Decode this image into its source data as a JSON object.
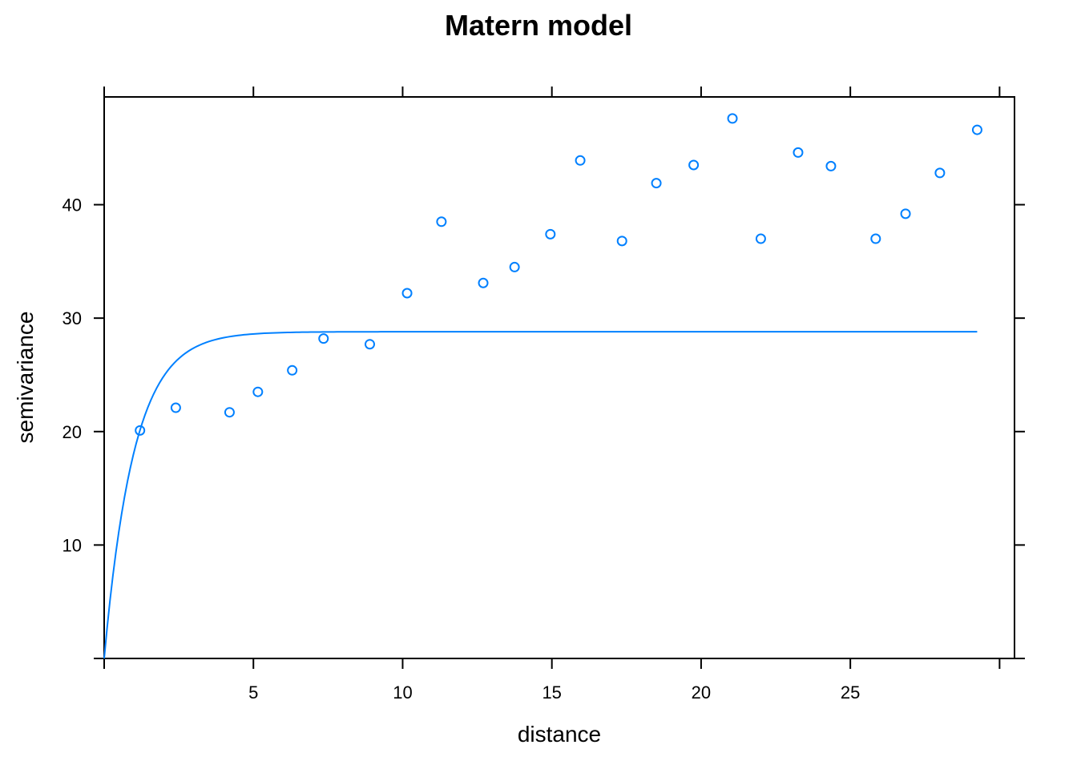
{
  "chart_data": {
    "type": "scatter",
    "title": "Matern model",
    "xlabel": "distance",
    "ylabel": "semivariance",
    "xlim": [
      0,
      30.5
    ],
    "ylim": [
      0,
      49.5
    ],
    "xticks": [
      5,
      10,
      15,
      20,
      25
    ],
    "yticks": [
      10,
      20,
      30,
      40
    ],
    "grid": false,
    "color": "#0080ff",
    "points": {
      "x": [
        1.2,
        2.4,
        4.2,
        5.15,
        6.3,
        7.35,
        8.9,
        10.15,
        11.3,
        12.7,
        13.75,
        14.95,
        15.95,
        17.35,
        18.5,
        19.75,
        21.05,
        22.0,
        23.25,
        24.35,
        25.85,
        26.85,
        28.0,
        29.25
      ],
      "y": [
        20.1,
        22.1,
        21.7,
        23.5,
        25.4,
        28.2,
        27.7,
        32.2,
        38.5,
        33.1,
        34.5,
        37.4,
        43.9,
        36.8,
        41.9,
        43.5,
        47.6,
        37.0,
        44.6,
        43.4,
        37.0,
        39.2,
        42.8,
        46.6
      ]
    },
    "model_curve": {
      "type": "line",
      "x_max": 29.25,
      "nugget": 0,
      "sill": 28.8,
      "range": 1.0,
      "kappa": 0.5
    }
  }
}
